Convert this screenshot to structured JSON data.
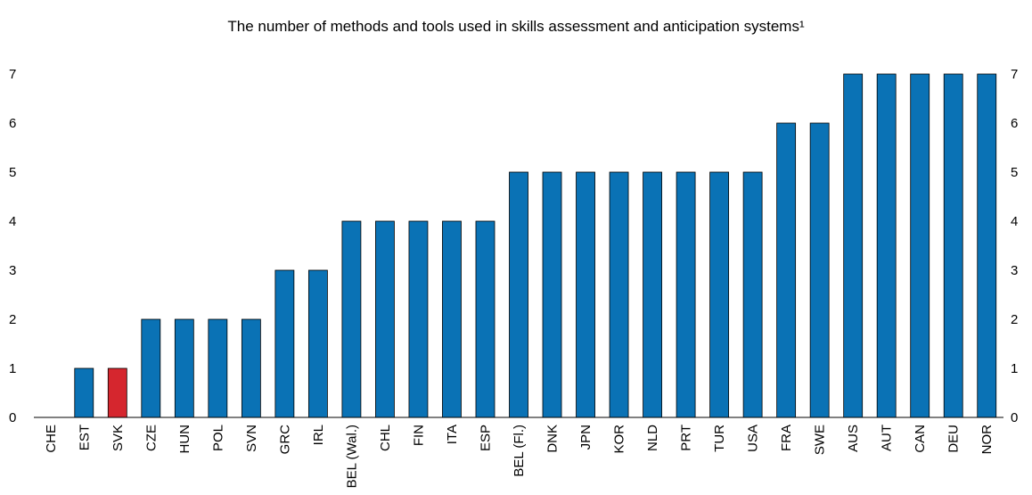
{
  "chart_data": {
    "type": "bar",
    "title": "The number of methods and tools used in skills assessment and anticipation systems¹",
    "xlabel": "",
    "ylabel": "",
    "ylim": [
      0,
      7
    ],
    "yticks": [
      0,
      1,
      2,
      3,
      4,
      5,
      6,
      7
    ],
    "grid": false,
    "categories": [
      "CHE",
      "EST",
      "SVK",
      "CZE",
      "HUN",
      "POL",
      "SVN",
      "GRC",
      "IRL",
      "BEL (Wal.)",
      "CHL",
      "FIN",
      "ITA",
      "ESP",
      "BEL (Fl.)",
      "DNK",
      "JPN",
      "KOR",
      "NLD",
      "PRT",
      "TUR",
      "USA",
      "FRA",
      "SWE",
      "AUS",
      "AUT",
      "CAN",
      "DEU",
      "NOR"
    ],
    "values": [
      0,
      1,
      1,
      2,
      2,
      2,
      2,
      3,
      3,
      4,
      4,
      4,
      4,
      4,
      5,
      5,
      5,
      5,
      5,
      5,
      5,
      5,
      6,
      6,
      7,
      7,
      7,
      7,
      7
    ],
    "highlight": "SVK",
    "colors": {
      "bar": "#0a72b5",
      "highlight": "#d5262e",
      "axis": "#000000"
    }
  }
}
